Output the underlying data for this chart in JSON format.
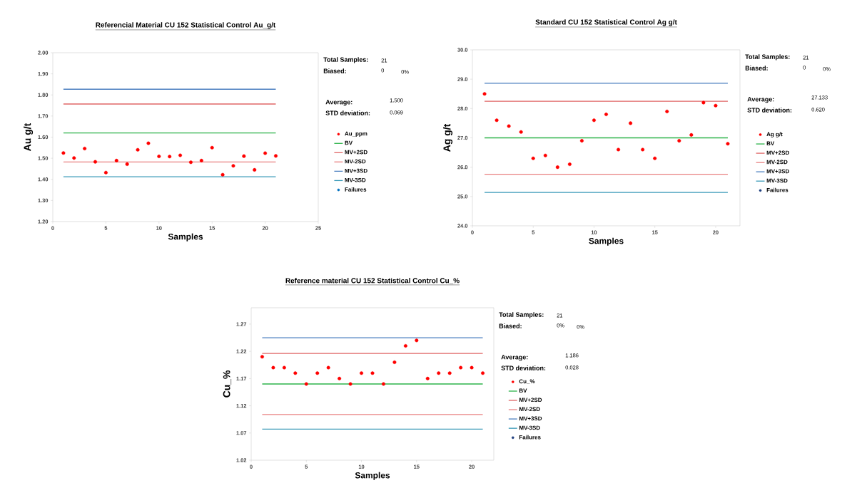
{
  "chart_data": [
    {
      "type": "scatter",
      "title": "Referencial Material  CU 152 Statistical Control Au_g/t",
      "xlabel": "Samples",
      "ylabel": "Au g/t",
      "xlim": [
        0,
        25
      ],
      "xticks": [
        0,
        5,
        10,
        15,
        20,
        25
      ],
      "ylim": [
        1.2,
        2.0
      ],
      "yticks": [
        {
          "value": 1.2,
          "label": "1.20"
        },
        {
          "value": 1.3,
          "label": "1.30"
        },
        {
          "value": 1.4,
          "label": "1.40"
        },
        {
          "value": 1.5,
          "label": "1.50"
        },
        {
          "value": 1.6,
          "label": "1.60"
        },
        {
          "value": 1.7,
          "label": "1.70"
        },
        {
          "value": 1.8,
          "label": "1.80"
        },
        {
          "value": 1.9,
          "label": "1.90"
        },
        {
          "value": 2.0,
          "label": "2.00"
        }
      ],
      "legend": "right",
      "marker": "circle",
      "x": [
        1,
        2,
        3,
        4,
        5,
        6,
        7,
        8,
        9,
        10,
        11,
        12,
        13,
        14,
        15,
        16,
        17,
        18,
        19,
        20,
        21
      ],
      "series": [
        {
          "name": "Au_ppm",
          "marker": "circle",
          "color": "#ff0000",
          "values": [
            1.525,
            1.501,
            1.546,
            1.483,
            1.432,
            1.489,
            1.472,
            1.54,
            1.571,
            1.509,
            1.508,
            1.514,
            1.481,
            1.489,
            1.55,
            1.422,
            1.464,
            1.51,
            1.445,
            1.524,
            1.511
          ]
        },
        {
          "name": "BV",
          "type": "line",
          "marker": "none",
          "color": "#2db34a",
          "values": [
            1.62,
            1.62,
            1.62,
            1.62,
            1.62,
            1.62,
            1.62,
            1.62,
            1.62,
            1.62,
            1.62,
            1.62,
            1.62,
            1.62,
            1.62,
            1.62,
            1.62,
            1.62,
            1.62,
            1.62,
            1.62
          ]
        },
        {
          "name": "MV+2SD",
          "type": "line",
          "marker": "none",
          "color": "#e06666",
          "values": [
            1.757,
            1.757,
            1.757,
            1.757,
            1.757,
            1.757,
            1.757,
            1.757,
            1.757,
            1.757,
            1.757,
            1.757,
            1.757,
            1.757,
            1.757,
            1.757,
            1.757,
            1.757,
            1.757,
            1.757,
            1.757
          ]
        },
        {
          "name": "MV-2SD",
          "type": "line",
          "marker": "none",
          "color": "#e88080",
          "values": [
            1.482,
            1.482,
            1.482,
            1.482,
            1.482,
            1.482,
            1.482,
            1.482,
            1.482,
            1.482,
            1.482,
            1.482,
            1.482,
            1.482,
            1.482,
            1.482,
            1.482,
            1.482,
            1.482,
            1.482,
            1.482
          ]
        },
        {
          "name": "MV+3SD",
          "type": "line",
          "marker": "none",
          "color": "#4a7ebf",
          "values": [
            1.827,
            1.827,
            1.827,
            1.827,
            1.827,
            1.827,
            1.827,
            1.827,
            1.827,
            1.827,
            1.827,
            1.827,
            1.827,
            1.827,
            1.827,
            1.827,
            1.827,
            1.827,
            1.827,
            1.827,
            1.827
          ]
        },
        {
          "name": "MV-3SD",
          "type": "line",
          "marker": "none",
          "color": "#3a9ab8",
          "values": [
            1.412,
            1.412,
            1.412,
            1.412,
            1.412,
            1.412,
            1.412,
            1.412,
            1.412,
            1.412,
            1.412,
            1.412,
            1.412,
            1.412,
            1.412,
            1.412,
            1.412,
            1.412,
            1.412,
            1.412,
            1.412
          ]
        },
        {
          "name": "Failures",
          "type": "scatter",
          "marker": "circle",
          "color": "#0070c0",
          "values": [
            null,
            null,
            null,
            null,
            null,
            null,
            null,
            null,
            null,
            null,
            null,
            null,
            null,
            null,
            null,
            null,
            null,
            null,
            null,
            null,
            null
          ]
        }
      ],
      "annotations": [
        "Total Samples:",
        "21",
        "Biased:",
        "0",
        "0%",
        "Average:",
        "1.500",
        "STD deviation:",
        "0.069"
      ]
    },
    {
      "type": "scatter",
      "title": "Standard CU 152 Statistical Control Ag g/t",
      "xlabel": "Samples",
      "ylabel": "Ag g/t",
      "xlim": [
        0,
        22
      ],
      "xticks": [
        0,
        5,
        10,
        15,
        20
      ],
      "ylim": [
        24,
        30
      ],
      "yticks": [
        {
          "value": 24,
          "label": "24.0"
        },
        {
          "value": 25,
          "label": "25.0"
        },
        {
          "value": 26,
          "label": "26.0"
        },
        {
          "value": 27,
          "label": "27.0"
        },
        {
          "value": 28,
          "label": "28.0"
        },
        {
          "value": 29,
          "label": "29.0"
        },
        {
          "value": 30,
          "label": "30.0"
        }
      ],
      "legend": "right",
      "marker": "circle",
      "x": [
        1,
        2,
        3,
        4,
        5,
        6,
        7,
        8,
        9,
        10,
        11,
        12,
        13,
        14,
        15,
        16,
        17,
        18,
        19,
        20,
        21
      ],
      "series": [
        {
          "name": "Ag g/t",
          "marker": "circle",
          "color": "#ff0000",
          "values": [
            28.5,
            27.6,
            27.4,
            27.2,
            26.3,
            26.4,
            26.0,
            26.1,
            26.9,
            27.6,
            27.8,
            26.6,
            27.5,
            26.6,
            26.3,
            27.9,
            26.9,
            27.1,
            28.2,
            28.1,
            26.8
          ]
        },
        {
          "name": "BV",
          "type": "line",
          "marker": "none",
          "color": "#2db34a",
          "values": [
            27.0,
            27.0,
            27.0,
            27.0,
            27.0,
            27.0,
            27.0,
            27.0,
            27.0,
            27.0,
            27.0,
            27.0,
            27.0,
            27.0,
            27.0,
            27.0,
            27.0,
            27.0,
            27.0,
            27.0,
            27.0
          ]
        },
        {
          "name": "MV+2SD",
          "type": "line",
          "marker": "none",
          "color": "#e06666",
          "values": [
            28.25,
            28.25,
            28.25,
            28.25,
            28.25,
            28.25,
            28.25,
            28.25,
            28.25,
            28.25,
            28.25,
            28.25,
            28.25,
            28.25,
            28.25,
            28.25,
            28.25,
            28.25,
            28.25,
            28.25,
            28.25
          ]
        },
        {
          "name": "MV-2SD",
          "type": "line",
          "marker": "none",
          "color": "#e88080",
          "values": [
            25.76,
            25.76,
            25.76,
            25.76,
            25.76,
            25.76,
            25.76,
            25.76,
            25.76,
            25.76,
            25.76,
            25.76,
            25.76,
            25.76,
            25.76,
            25.76,
            25.76,
            25.76,
            25.76,
            25.76,
            25.76
          ]
        },
        {
          "name": "MV+3SD",
          "type": "line",
          "marker": "none",
          "color": "#4a7ebf",
          "values": [
            28.86,
            28.86,
            28.86,
            28.86,
            28.86,
            28.86,
            28.86,
            28.86,
            28.86,
            28.86,
            28.86,
            28.86,
            28.86,
            28.86,
            28.86,
            28.86,
            28.86,
            28.86,
            28.86,
            28.86,
            28.86
          ]
        },
        {
          "name": "MV-3SD",
          "type": "line",
          "marker": "none",
          "color": "#3a9ab8",
          "values": [
            25.14,
            25.14,
            25.14,
            25.14,
            25.14,
            25.14,
            25.14,
            25.14,
            25.14,
            25.14,
            25.14,
            25.14,
            25.14,
            25.14,
            25.14,
            25.14,
            25.14,
            25.14,
            25.14,
            25.14,
            25.14
          ]
        },
        {
          "name": "Failures",
          "type": "scatter",
          "color": "#1f3f7f",
          "values": [
            null,
            null,
            null,
            null,
            null,
            null,
            null,
            null,
            null,
            null,
            null,
            null,
            null,
            null,
            null,
            null,
            null,
            null,
            null,
            null,
            null
          ]
        }
      ],
      "annotations": [
        "Total Samples:",
        "21",
        "Biased:",
        "0",
        "0%",
        "Average:",
        "27.133",
        "STD deviation:",
        "0.620"
      ]
    },
    {
      "type": "scatter",
      "title": "Reference material CU 152 Statistical Control Cu_%",
      "xlabel": "Samples",
      "ylabel": "Cu_%",
      "xlim": [
        0,
        22
      ],
      "xticks": [
        0,
        5,
        10,
        15,
        20
      ],
      "ylim": [
        1.02,
        1.3
      ],
      "yticks": [
        1.02,
        1.07,
        1.12,
        1.17,
        1.22,
        1.27
      ],
      "legend": "right",
      "marker": "circle",
      "x": [
        1,
        2,
        3,
        4,
        5,
        6,
        7,
        8,
        9,
        10,
        11,
        12,
        13,
        14,
        15,
        16,
        17,
        18,
        19,
        20,
        21
      ],
      "series": [
        {
          "name": "Cu_%",
          "marker": "circle",
          "color": "#ff0000",
          "values": [
            1.21,
            1.19,
            1.19,
            1.18,
            1.16,
            1.18,
            1.19,
            1.17,
            1.16,
            1.18,
            1.18,
            1.16,
            1.2,
            1.23,
            1.24,
            1.17,
            1.18,
            1.18,
            1.19,
            1.19,
            1.18
          ]
        },
        {
          "name": "BV",
          "type": "line",
          "marker": "none",
          "color": "#2db34a",
          "values": [
            1.16,
            1.16,
            1.16,
            1.16,
            1.16,
            1.16,
            1.16,
            1.16,
            1.16,
            1.16,
            1.16,
            1.16,
            1.16,
            1.16,
            1.16,
            1.16,
            1.16,
            1.16,
            1.16,
            1.16,
            1.16
          ]
        },
        {
          "name": "MV+2SD",
          "type": "line",
          "marker": "none",
          "color": "#e06666",
          "values": [
            1.216,
            1.216,
            1.216,
            1.216,
            1.216,
            1.216,
            1.216,
            1.216,
            1.216,
            1.216,
            1.216,
            1.216,
            1.216,
            1.216,
            1.216,
            1.216,
            1.216,
            1.216,
            1.216,
            1.216,
            1.216
          ]
        },
        {
          "name": "MV-2SD",
          "type": "line",
          "marker": "none",
          "color": "#e88080",
          "values": [
            1.104,
            1.104,
            1.104,
            1.104,
            1.104,
            1.104,
            1.104,
            1.104,
            1.104,
            1.104,
            1.104,
            1.104,
            1.104,
            1.104,
            1.104,
            1.104,
            1.104,
            1.104,
            1.104,
            1.104,
            1.104
          ]
        },
        {
          "name": "MV+3SD",
          "type": "line",
          "marker": "none",
          "color": "#4a7ebf",
          "values": [
            1.245,
            1.245,
            1.245,
            1.245,
            1.245,
            1.245,
            1.245,
            1.245,
            1.245,
            1.245,
            1.245,
            1.245,
            1.245,
            1.245,
            1.245,
            1.245,
            1.245,
            1.245,
            1.245,
            1.245,
            1.245
          ]
        },
        {
          "name": "MV-3SD",
          "type": "line",
          "marker": "none",
          "color": "#3a9ab8",
          "values": [
            1.077,
            1.077,
            1.077,
            1.077,
            1.077,
            1.077,
            1.077,
            1.077,
            1.077,
            1.077,
            1.077,
            1.077,
            1.077,
            1.077,
            1.077,
            1.077,
            1.077,
            1.077,
            1.077,
            1.077,
            1.077
          ]
        },
        {
          "name": "Failures",
          "type": "scatter",
          "color": "#1f3f7f",
          "values": [
            null,
            null,
            null,
            null,
            null,
            null,
            null,
            null,
            null,
            null,
            null,
            null,
            null,
            null,
            null,
            null,
            null,
            null,
            null,
            null,
            null
          ]
        }
      ],
      "annotations": [
        "Total Samples:",
        "21",
        "Biased:",
        "0%",
        "0%",
        "Average:",
        "1.186",
        "STD deviation:",
        "0.028"
      ]
    }
  ]
}
